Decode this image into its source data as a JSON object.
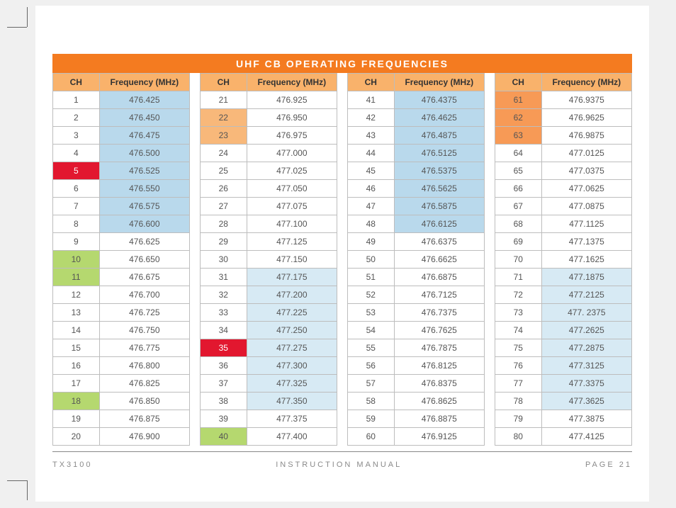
{
  "title": "UHF CB OPERATING FREQUENCIES",
  "footer": {
    "left": "TX3100",
    "center": "INSTRUCTION MANUAL",
    "right": "PAGE 21"
  },
  "header": {
    "ch": "CH",
    "freq": "Frequency (MHz)"
  },
  "palette": {
    "header_bg": "#f9b26b",
    "orange_cell": "#f8b87a",
    "dark_orange_cell": "#f79a56",
    "blue_cell": "#b9d9ec",
    "light_blue_cell": "#d7eaf4",
    "green_cell": "#b5d86f",
    "red_cell": "#e2172f",
    "red_text": "#ffffff",
    "white": "#ffffff"
  },
  "columns": [
    [
      {
        "ch": "1",
        "freq": "476.425",
        "ch_bg": "white",
        "freq_bg": "blue_cell"
      },
      {
        "ch": "2",
        "freq": "476.450",
        "ch_bg": "white",
        "freq_bg": "blue_cell"
      },
      {
        "ch": "3",
        "freq": "476.475",
        "ch_bg": "white",
        "freq_bg": "blue_cell"
      },
      {
        "ch": "4",
        "freq": "476.500",
        "ch_bg": "white",
        "freq_bg": "blue_cell"
      },
      {
        "ch": "5",
        "freq": "476.525",
        "ch_bg": "red_cell",
        "freq_bg": "blue_cell",
        "ch_fg": "red_text"
      },
      {
        "ch": "6",
        "freq": "476.550",
        "ch_bg": "white",
        "freq_bg": "blue_cell"
      },
      {
        "ch": "7",
        "freq": "476.575",
        "ch_bg": "white",
        "freq_bg": "blue_cell"
      },
      {
        "ch": "8",
        "freq": "476.600",
        "ch_bg": "white",
        "freq_bg": "blue_cell"
      },
      {
        "ch": "9",
        "freq": "476.625",
        "ch_bg": "white",
        "freq_bg": "white"
      },
      {
        "ch": "10",
        "freq": "476.650",
        "ch_bg": "green_cell",
        "freq_bg": "white"
      },
      {
        "ch": "11",
        "freq": "476.675",
        "ch_bg": "green_cell",
        "freq_bg": "white"
      },
      {
        "ch": "12",
        "freq": "476.700",
        "ch_bg": "white",
        "freq_bg": "white"
      },
      {
        "ch": "13",
        "freq": "476.725",
        "ch_bg": "white",
        "freq_bg": "white"
      },
      {
        "ch": "14",
        "freq": "476.750",
        "ch_bg": "white",
        "freq_bg": "white"
      },
      {
        "ch": "15",
        "freq": "476.775",
        "ch_bg": "white",
        "freq_bg": "white"
      },
      {
        "ch": "16",
        "freq": "476.800",
        "ch_bg": "white",
        "freq_bg": "white"
      },
      {
        "ch": "17",
        "freq": "476.825",
        "ch_bg": "white",
        "freq_bg": "white"
      },
      {
        "ch": "18",
        "freq": "476.850",
        "ch_bg": "green_cell",
        "freq_bg": "white"
      },
      {
        "ch": "19",
        "freq": "476.875",
        "ch_bg": "white",
        "freq_bg": "white"
      },
      {
        "ch": "20",
        "freq": "476.900",
        "ch_bg": "white",
        "freq_bg": "white"
      }
    ],
    [
      {
        "ch": "21",
        "freq": "476.925",
        "ch_bg": "white",
        "freq_bg": "white"
      },
      {
        "ch": "22",
        "freq": "476.950",
        "ch_bg": "orange_cell",
        "freq_bg": "white"
      },
      {
        "ch": "23",
        "freq": "476.975",
        "ch_bg": "orange_cell",
        "freq_bg": "white"
      },
      {
        "ch": "24",
        "freq": "477.000",
        "ch_bg": "white",
        "freq_bg": "white"
      },
      {
        "ch": "25",
        "freq": "477.025",
        "ch_bg": "white",
        "freq_bg": "white"
      },
      {
        "ch": "26",
        "freq": "477.050",
        "ch_bg": "white",
        "freq_bg": "white"
      },
      {
        "ch": "27",
        "freq": "477.075",
        "ch_bg": "white",
        "freq_bg": "white"
      },
      {
        "ch": "28",
        "freq": "477.100",
        "ch_bg": "white",
        "freq_bg": "white"
      },
      {
        "ch": "29",
        "freq": "477.125",
        "ch_bg": "white",
        "freq_bg": "white"
      },
      {
        "ch": "30",
        "freq": "477.150",
        "ch_bg": "white",
        "freq_bg": "white"
      },
      {
        "ch": "31",
        "freq": "477.175",
        "ch_bg": "white",
        "freq_bg": "light_blue_cell"
      },
      {
        "ch": "32",
        "freq": "477.200",
        "ch_bg": "white",
        "freq_bg": "light_blue_cell"
      },
      {
        "ch": "33",
        "freq": "477.225",
        "ch_bg": "white",
        "freq_bg": "light_blue_cell"
      },
      {
        "ch": "34",
        "freq": "477.250",
        "ch_bg": "white",
        "freq_bg": "light_blue_cell"
      },
      {
        "ch": "35",
        "freq": "477.275",
        "ch_bg": "red_cell",
        "freq_bg": "light_blue_cell",
        "ch_fg": "red_text"
      },
      {
        "ch": "36",
        "freq": "477.300",
        "ch_bg": "white",
        "freq_bg": "light_blue_cell"
      },
      {
        "ch": "37",
        "freq": "477.325",
        "ch_bg": "white",
        "freq_bg": "light_blue_cell"
      },
      {
        "ch": "38",
        "freq": "477.350",
        "ch_bg": "white",
        "freq_bg": "light_blue_cell"
      },
      {
        "ch": "39",
        "freq": "477.375",
        "ch_bg": "white",
        "freq_bg": "white"
      },
      {
        "ch": "40",
        "freq": "477.400",
        "ch_bg": "green_cell",
        "freq_bg": "white"
      }
    ],
    [
      {
        "ch": "41",
        "freq": "476.4375",
        "ch_bg": "white",
        "freq_bg": "blue_cell"
      },
      {
        "ch": "42",
        "freq": "476.4625",
        "ch_bg": "white",
        "freq_bg": "blue_cell"
      },
      {
        "ch": "43",
        "freq": "476.4875",
        "ch_bg": "white",
        "freq_bg": "blue_cell"
      },
      {
        "ch": "44",
        "freq": "476.5125",
        "ch_bg": "white",
        "freq_bg": "blue_cell"
      },
      {
        "ch": "45",
        "freq": "476.5375",
        "ch_bg": "white",
        "freq_bg": "blue_cell"
      },
      {
        "ch": "46",
        "freq": "476.5625",
        "ch_bg": "white",
        "freq_bg": "blue_cell"
      },
      {
        "ch": "47",
        "freq": "476.5875",
        "ch_bg": "white",
        "freq_bg": "blue_cell"
      },
      {
        "ch": "48",
        "freq": "476.6125",
        "ch_bg": "white",
        "freq_bg": "blue_cell"
      },
      {
        "ch": "49",
        "freq": "476.6375",
        "ch_bg": "white",
        "freq_bg": "white"
      },
      {
        "ch": "50",
        "freq": "476.6625",
        "ch_bg": "white",
        "freq_bg": "white"
      },
      {
        "ch": "51",
        "freq": "476.6875",
        "ch_bg": "white",
        "freq_bg": "white"
      },
      {
        "ch": "52",
        "freq": "476.7125",
        "ch_bg": "white",
        "freq_bg": "white"
      },
      {
        "ch": "53",
        "freq": "476.7375",
        "ch_bg": "white",
        "freq_bg": "white"
      },
      {
        "ch": "54",
        "freq": "476.7625",
        "ch_bg": "white",
        "freq_bg": "white"
      },
      {
        "ch": "55",
        "freq": "476.7875",
        "ch_bg": "white",
        "freq_bg": "white"
      },
      {
        "ch": "56",
        "freq": "476.8125",
        "ch_bg": "white",
        "freq_bg": "white"
      },
      {
        "ch": "57",
        "freq": "476.8375",
        "ch_bg": "white",
        "freq_bg": "white"
      },
      {
        "ch": "58",
        "freq": "476.8625",
        "ch_bg": "white",
        "freq_bg": "white"
      },
      {
        "ch": "59",
        "freq": "476.8875",
        "ch_bg": "white",
        "freq_bg": "white"
      },
      {
        "ch": "60",
        "freq": "476.9125",
        "ch_bg": "white",
        "freq_bg": "white"
      }
    ],
    [
      {
        "ch": "61",
        "freq": "476.9375",
        "ch_bg": "dark_orange_cell",
        "freq_bg": "white"
      },
      {
        "ch": "62",
        "freq": "476.9625",
        "ch_bg": "dark_orange_cell",
        "freq_bg": "white"
      },
      {
        "ch": "63",
        "freq": "476.9875",
        "ch_bg": "dark_orange_cell",
        "freq_bg": "white"
      },
      {
        "ch": "64",
        "freq": "477.0125",
        "ch_bg": "white",
        "freq_bg": "white"
      },
      {
        "ch": "65",
        "freq": "477.0375",
        "ch_bg": "white",
        "freq_bg": "white"
      },
      {
        "ch": "66",
        "freq": "477.0625",
        "ch_bg": "white",
        "freq_bg": "white"
      },
      {
        "ch": "67",
        "freq": "477.0875",
        "ch_bg": "white",
        "freq_bg": "white"
      },
      {
        "ch": "68",
        "freq": "477.1125",
        "ch_bg": "white",
        "freq_bg": "white"
      },
      {
        "ch": "69",
        "freq": "477.1375",
        "ch_bg": "white",
        "freq_bg": "white"
      },
      {
        "ch": "70",
        "freq": "477.1625",
        "ch_bg": "white",
        "freq_bg": "white"
      },
      {
        "ch": "71",
        "freq": "477.1875",
        "ch_bg": "white",
        "freq_bg": "light_blue_cell"
      },
      {
        "ch": "72",
        "freq": "477.2125",
        "ch_bg": "white",
        "freq_bg": "light_blue_cell"
      },
      {
        "ch": "73",
        "freq": "477. 2375",
        "ch_bg": "white",
        "freq_bg": "light_blue_cell"
      },
      {
        "ch": "74",
        "freq": "477.2625",
        "ch_bg": "white",
        "freq_bg": "light_blue_cell"
      },
      {
        "ch": "75",
        "freq": "477.2875",
        "ch_bg": "white",
        "freq_bg": "light_blue_cell"
      },
      {
        "ch": "76",
        "freq": "477.3125",
        "ch_bg": "white",
        "freq_bg": "light_blue_cell"
      },
      {
        "ch": "77",
        "freq": "477.3375",
        "ch_bg": "white",
        "freq_bg": "light_blue_cell"
      },
      {
        "ch": "78",
        "freq": "477.3625",
        "ch_bg": "white",
        "freq_bg": "light_blue_cell"
      },
      {
        "ch": "79",
        "freq": "477.3875",
        "ch_bg": "white",
        "freq_bg": "white"
      },
      {
        "ch": "80",
        "freq": "477.4125",
        "ch_bg": "white",
        "freq_bg": "white"
      }
    ]
  ]
}
